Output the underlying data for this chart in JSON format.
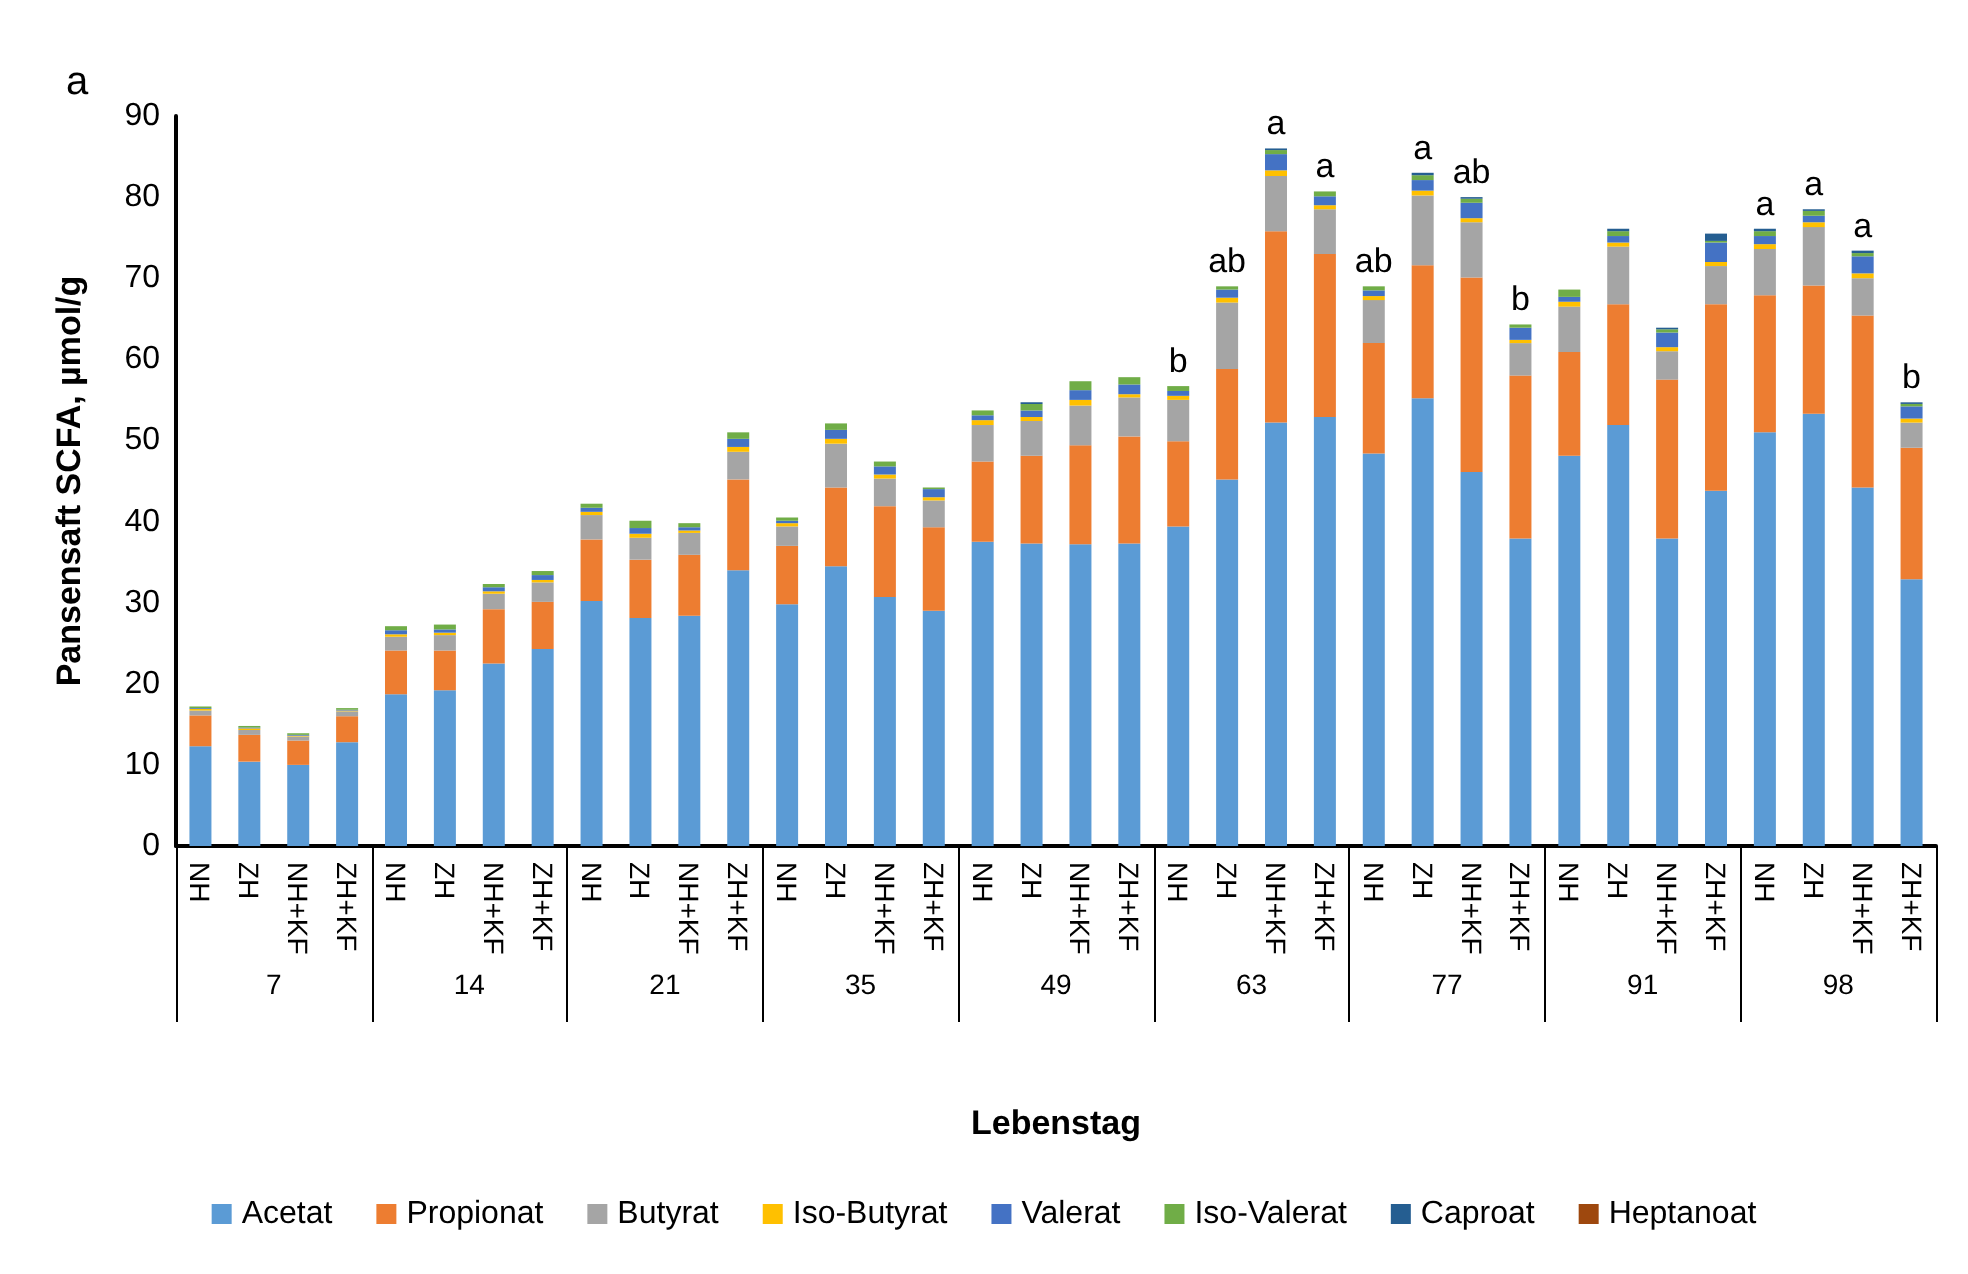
{
  "chart_data": {
    "type": "bar",
    "stacked": true,
    "title": "a",
    "ylabel": "Pansensaft SCFA, µmol/g",
    "xlabel": "Lebenstag",
    "categories": [
      "NH",
      "ZH",
      "NH+KF",
      "ZH+KF",
      "NH",
      "ZH",
      "NH+KF",
      "ZH+KF",
      "NH",
      "ZH",
      "NH+KF",
      "ZH+KF",
      "NH",
      "ZH",
      "NH+KF",
      "ZH+KF",
      "NH",
      "ZH",
      "NH+KF",
      "ZH+KF",
      "NH",
      "ZH",
      "NH+KF",
      "ZH+KF",
      "NH",
      "ZH",
      "NH+KF",
      "ZH+KF",
      "NH",
      "ZH",
      "NH+KF",
      "ZH+KF",
      "NH",
      "ZH",
      "NH+KF",
      "ZH+KF"
    ],
    "annotations": [
      "7",
      "14",
      "21",
      "35",
      "49",
      "63",
      "77",
      "91",
      "98"
    ],
    "ylim": [
      0,
      90
    ],
    "yticks": [
      0,
      10,
      20,
      30,
      40,
      50,
      60,
      70,
      80,
      90
    ],
    "grid": false,
    "legend": "bottom",
    "series": [
      {
        "name": "Acetat",
        "color": "#5b9bd5",
        "values": [
          12.3,
          10.4,
          10.0,
          12.8,
          18.7,
          19.2,
          22.5,
          24.3,
          30.2,
          28.1,
          28.4,
          34.0,
          29.8,
          34.5,
          30.7,
          29.0,
          37.5,
          37.3,
          37.2,
          37.3,
          39.4,
          45.2,
          52.2,
          52.9,
          48.4,
          55.2,
          46.1,
          37.9,
          48.1,
          51.9,
          37.9,
          43.8,
          51.0,
          53.3,
          44.2,
          32.9
        ]
      },
      {
        "name": "Propionat",
        "color": "#ed7d31",
        "values": [
          3.8,
          3.3,
          3.0,
          3.2,
          5.4,
          4.9,
          6.7,
          5.8,
          7.6,
          7.2,
          7.5,
          11.2,
          7.2,
          9.7,
          11.2,
          10.3,
          9.9,
          10.8,
          12.2,
          13.2,
          10.5,
          13.6,
          23.6,
          20.1,
          13.6,
          16.4,
          24.0,
          20.1,
          12.8,
          14.9,
          19.6,
          23.0,
          16.9,
          15.8,
          21.2,
          16.2
        ]
      },
      {
        "name": "Butyrat",
        "color": "#a5a5a5",
        "values": [
          0.6,
          0.6,
          0.5,
          0.6,
          1.7,
          1.9,
          1.9,
          2.4,
          3.0,
          2.7,
          2.7,
          3.4,
          2.4,
          5.4,
          3.4,
          3.3,
          4.5,
          4.3,
          4.9,
          4.8,
          5.1,
          8.2,
          6.8,
          5.5,
          5.3,
          8.6,
          6.8,
          4.0,
          5.6,
          7.1,
          3.5,
          4.7,
          5.7,
          7.2,
          4.6,
          3.1
        ]
      },
      {
        "name": "Iso-Butyrat",
        "color": "#ffc000",
        "values": [
          0.2,
          0.2,
          0.1,
          0.1,
          0.3,
          0.3,
          0.3,
          0.3,
          0.4,
          0.5,
          0.3,
          0.6,
          0.4,
          0.6,
          0.5,
          0.4,
          0.6,
          0.5,
          0.7,
          0.4,
          0.5,
          0.6,
          0.7,
          0.5,
          0.5,
          0.6,
          0.5,
          0.4,
          0.6,
          0.5,
          0.5,
          0.5,
          0.6,
          0.6,
          0.6,
          0.5
        ]
      },
      {
        "name": "Valerat",
        "color": "#4472c4",
        "values": [
          0.1,
          0.1,
          0.1,
          0.1,
          0.5,
          0.4,
          0.5,
          0.6,
          0.5,
          0.7,
          0.4,
          1.0,
          0.3,
          1.1,
          1.0,
          1.0,
          0.6,
          0.8,
          1.2,
          1.2,
          0.6,
          1.0,
          2.0,
          1.1,
          0.7,
          1.3,
          1.9,
          1.5,
          0.6,
          0.8,
          1.8,
          2.4,
          1.0,
          0.8,
          2.1,
          1.5
        ]
      },
      {
        "name": "Iso-Valerat",
        "color": "#70ad47",
        "values": [
          0.2,
          0.2,
          0.2,
          0.2,
          0.5,
          0.6,
          0.4,
          0.5,
          0.5,
          0.9,
          0.5,
          0.8,
          0.4,
          0.8,
          0.6,
          0.2,
          0.6,
          0.8,
          1.1,
          0.9,
          0.6,
          0.4,
          0.5,
          0.6,
          0.5,
          0.6,
          0.5,
          0.4,
          0.9,
          0.6,
          0.4,
          0.2,
          0.6,
          0.6,
          0.4,
          0.3
        ]
      },
      {
        "name": "Caproat",
        "color": "#255e91",
        "values": [
          0,
          0,
          0,
          0,
          0,
          0,
          0,
          0,
          0,
          0,
          0,
          0,
          0,
          0,
          0,
          0,
          0,
          0.2,
          0,
          0,
          0,
          0,
          0.2,
          0,
          0,
          0.3,
          0.2,
          0,
          0,
          0.3,
          0.2,
          0.9,
          0.3,
          0.2,
          0.3,
          0.2
        ]
      },
      {
        "name": "Heptanoat",
        "color": "#9e480e",
        "values": [
          0,
          0,
          0,
          0,
          0,
          0,
          0,
          0,
          0,
          0,
          0,
          0,
          0,
          0,
          0,
          0,
          0,
          0,
          0,
          0,
          0,
          0,
          0,
          0,
          0,
          0,
          0,
          0,
          0,
          0,
          0,
          0,
          0,
          0,
          0,
          0
        ],
        "value_labels": [
          null,
          null,
          null,
          null,
          null,
          null,
          null,
          null,
          null,
          null,
          null,
          null,
          null,
          null,
          null,
          null,
          null,
          null,
          null,
          null,
          "b",
          "ab",
          "a",
          "a",
          "ab",
          "a",
          "ab",
          "b",
          null,
          null,
          null,
          null,
          "a",
          "a",
          "a",
          "b"
        ]
      }
    ]
  }
}
